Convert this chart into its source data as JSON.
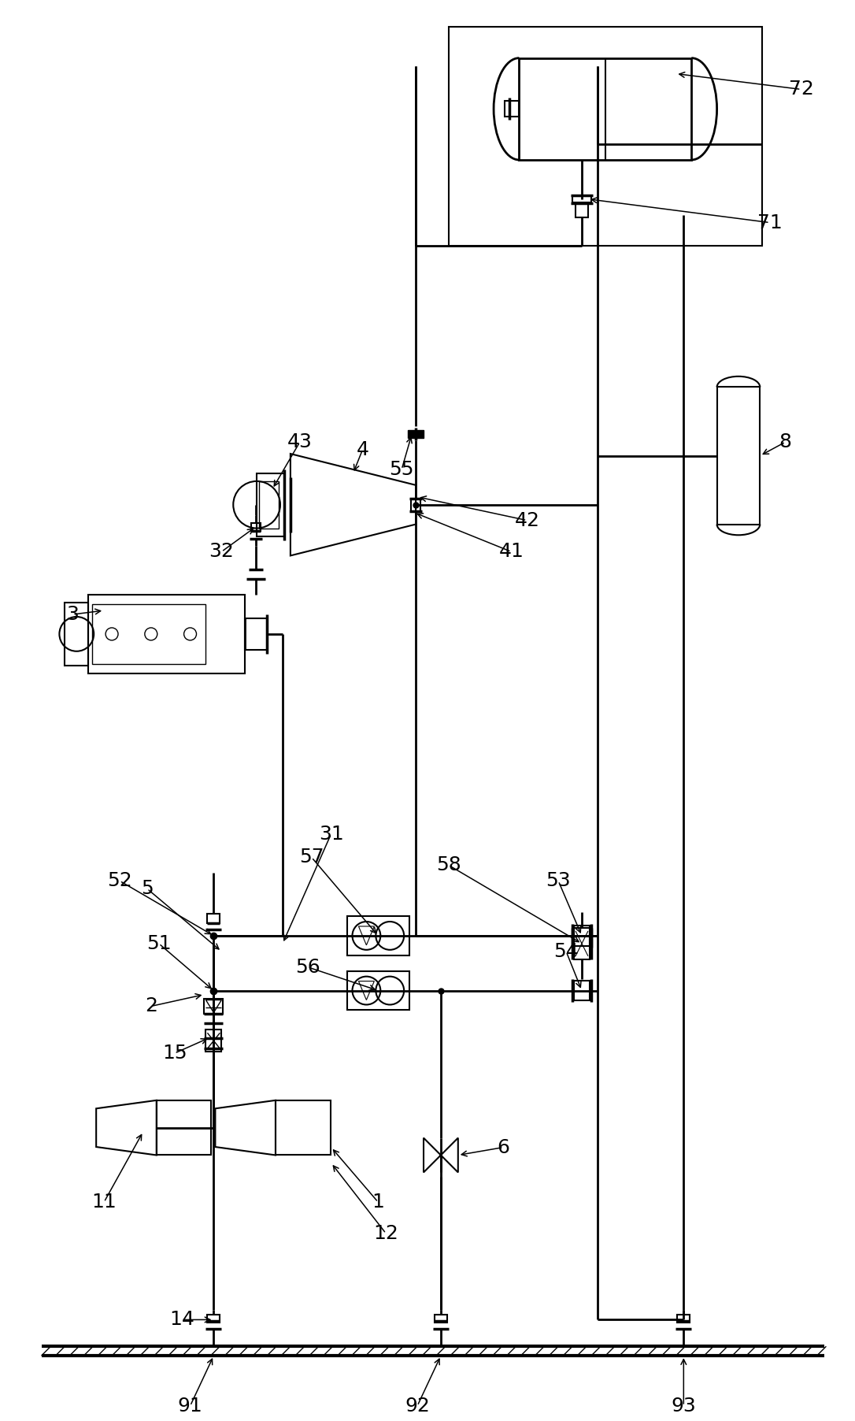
{
  "bg_color": "#ffffff",
  "line_color": "#000000",
  "lw": 1.5,
  "figsize": [
    10.86,
    18.04
  ],
  "dpi": 100,
  "label_fontsize": 18
}
